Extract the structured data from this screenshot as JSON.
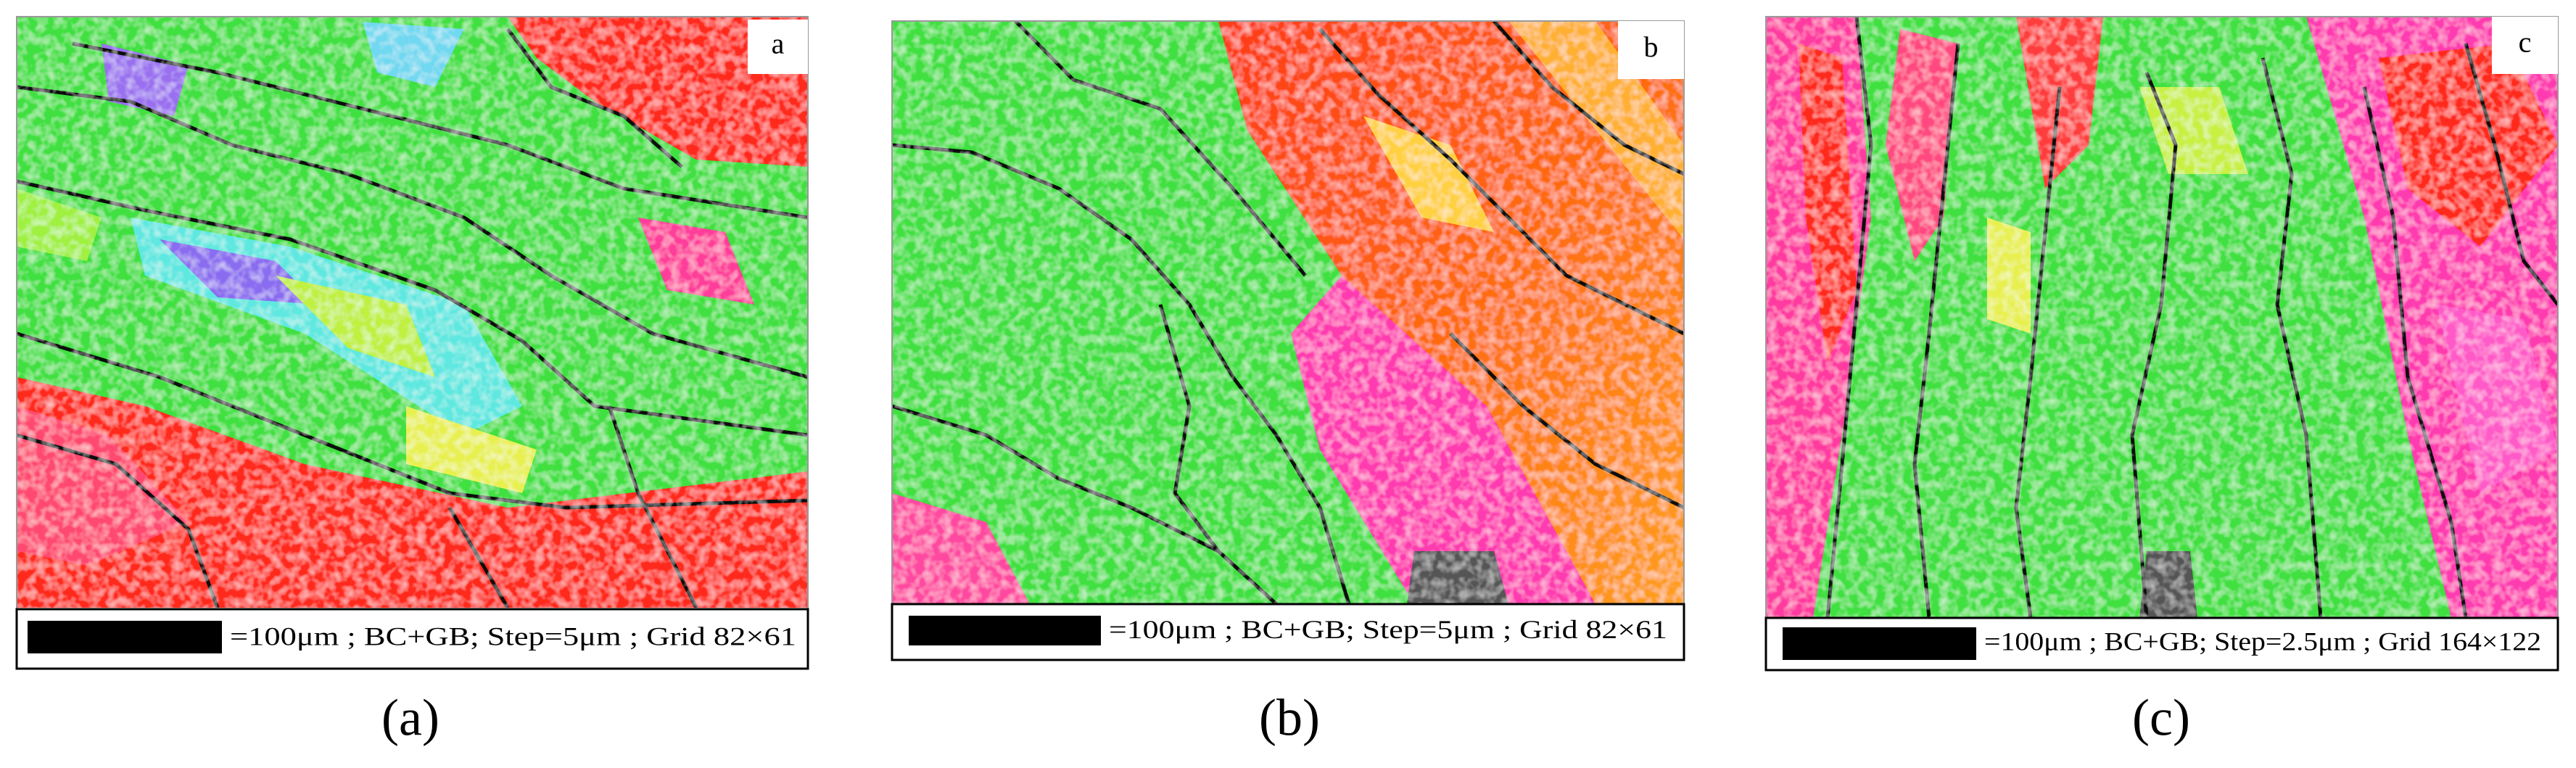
{
  "panels": [
    {
      "letter": "a",
      "scale_text": "=100μm ; BC+GB; Step=5μm ; Grid 82×61",
      "caption": "(a)"
    },
    {
      "letter": "b",
      "scale_text": "=100μm ; BC+GB; Step=5μm ; Grid 82×61",
      "caption": "(b)"
    },
    {
      "letter": "c",
      "scale_text": "=100μm ; BC+GB; Step=2.5μm ; Grid 164×122",
      "caption": "(c)"
    }
  ]
}
